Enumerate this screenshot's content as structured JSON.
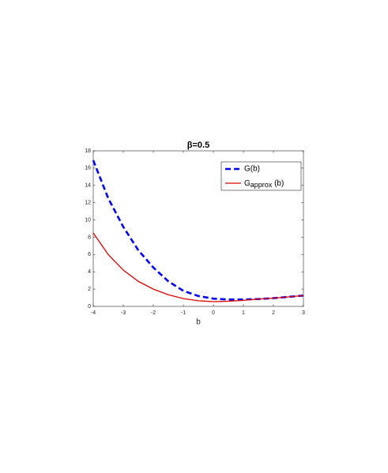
{
  "chart_data": {
    "type": "line",
    "title": "β=0.5",
    "x_label": "b",
    "x": [
      -4,
      -3.5,
      -3,
      -2.5,
      -2,
      -1.5,
      -1,
      -0.5,
      0,
      0.5,
      1,
      1.5,
      2,
      2.5,
      3
    ],
    "series": [
      {
        "name": "G(b)",
        "color": "#0000ff",
        "linestyle": "dashed",
        "values": [
          16.9,
          12.5,
          9.2,
          6.5,
          4.5,
          2.9,
          1.8,
          1.2,
          0.9,
          0.8,
          0.8,
          0.85,
          0.95,
          1.1,
          1.25
        ]
      },
      {
        "name": "Gapprox (b)",
        "name_subscript": "approx",
        "color": "#e00000",
        "linestyle": "solid",
        "values": [
          8.5,
          6.0,
          4.2,
          2.9,
          2.0,
          1.35,
          0.9,
          0.65,
          0.55,
          0.6,
          0.7,
          0.85,
          0.95,
          1.1,
          1.25
        ]
      }
    ],
    "xlim": [
      -4,
      3
    ],
    "xticks": [
      -4,
      -3,
      -2,
      -1,
      0,
      1,
      2,
      3
    ],
    "ylim": [
      0,
      18
    ],
    "yticks": [
      0,
      2,
      4,
      6,
      8,
      10,
      12,
      14,
      16,
      18
    ],
    "grid": false,
    "legend": "northeast"
  }
}
